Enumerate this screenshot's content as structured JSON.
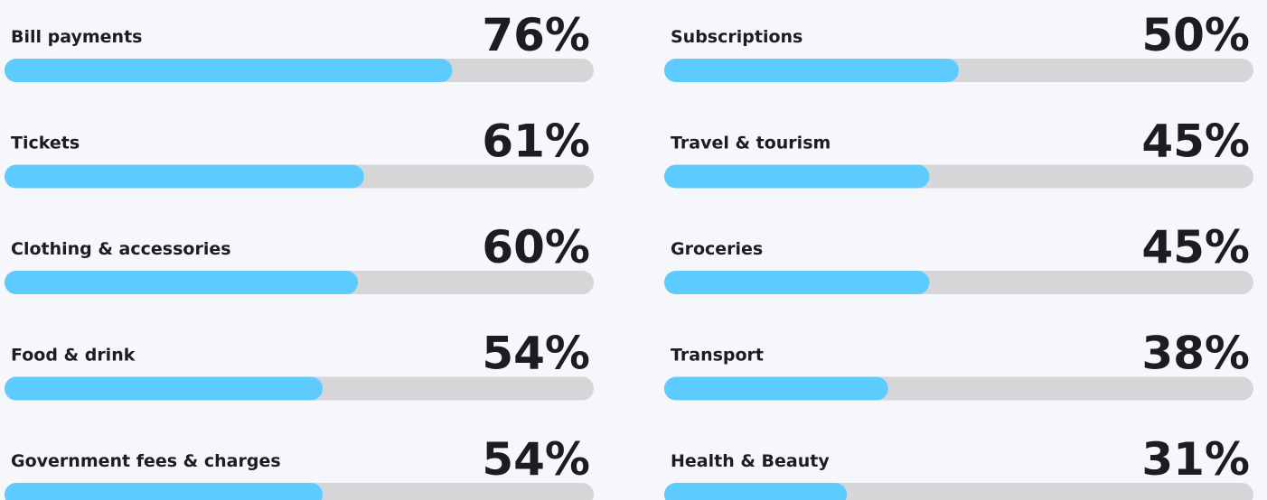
{
  "chart_data": [
    {
      "type": "bar",
      "orientation": "horizontal",
      "categories": [
        "Bill payments",
        "Tickets",
        "Clothing & accessories",
        "Food & drink",
        "Government fees & charges"
      ],
      "values": [
        76,
        61,
        60,
        54,
        54
      ],
      "value_labels": [
        "76%",
        "61%",
        "60%",
        "54%",
        "54%"
      ],
      "xlim": [
        0,
        100
      ],
      "color": "#5ecbff",
      "track_color": "#d6d6d8"
    },
    {
      "type": "bar",
      "orientation": "horizontal",
      "categories": [
        "Subscriptions",
        "Travel & tourism",
        "Groceries",
        "Transport",
        "Health & Beauty"
      ],
      "values": [
        50,
        45,
        45,
        38,
        31
      ],
      "value_labels": [
        "50%",
        "45%",
        "45%",
        "38%",
        "31%"
      ],
      "xlim": [
        0,
        100
      ],
      "color": "#5ecbff",
      "track_color": "#d6d6d8"
    }
  ]
}
